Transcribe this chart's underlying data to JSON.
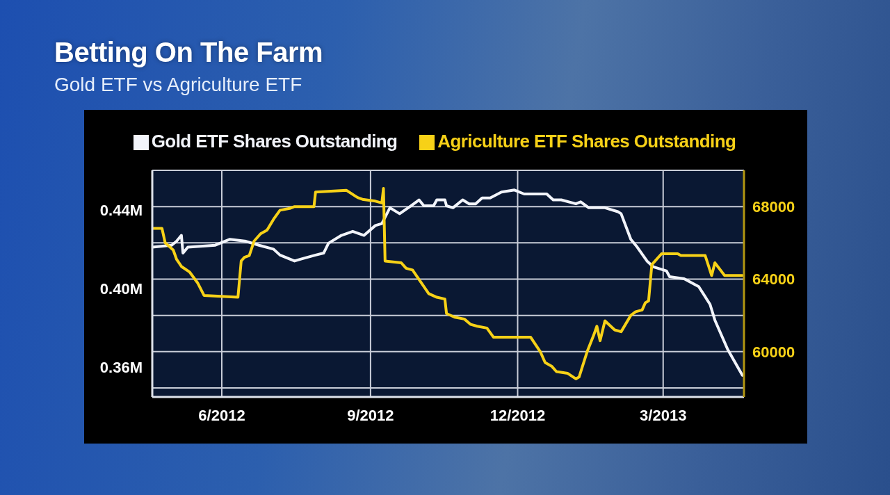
{
  "chart_data": {
    "type": "line",
    "title": "Betting On The Farm",
    "subtitle": "Gold ETF vs Agriculture ETF",
    "xlim": [
      "2012-04-19",
      "2013-04-20"
    ],
    "xticks": [
      {
        "value": "2012-06",
        "label": "6/2012"
      },
      {
        "value": "2012-09",
        "label": "9/2012"
      },
      {
        "value": "2012-12",
        "label": "12/2012"
      },
      {
        "value": "2013-03",
        "label": "3/2013"
      }
    ],
    "ylim": [
      0.345,
      0.46
    ],
    "yticks": [
      {
        "value": 0.36,
        "label": "0.36M"
      },
      {
        "value": 0.4,
        "label": "0.40M"
      },
      {
        "value": 0.44,
        "label": "0.44M"
      }
    ],
    "y2lim": [
      57500,
      70000
    ],
    "y2ticks": [
      {
        "value": 58000,
        "label": null
      },
      60000,
      {
        "value": 62000,
        "label": null
      },
      64000,
      {
        "value": 66000,
        "label": null
      },
      68000
    ],
    "grid": true,
    "legend": "top",
    "series": [
      {
        "name": "Gold ETF Shares Outstanding",
        "color": "#f2f4fa",
        "x": [
          "2012-04-19",
          "2012-05-01",
          "2012-05-04",
          "2012-05-07",
          "2012-05-08",
          "2012-05-11",
          "2012-05-28",
          "2012-06-06",
          "2012-06-16",
          "2012-06-24",
          "2012-07-03",
          "2012-07-07",
          "2012-07-16",
          "2012-07-20",
          "2012-07-29",
          "2012-08-03",
          "2012-08-06",
          "2012-08-14",
          "2012-08-21",
          "2012-08-28",
          "2012-09-04",
          "2012-09-08",
          "2012-09-13",
          "2012-09-19",
          "2012-09-26",
          "2012-10-01",
          "2012-10-04",
          "2012-10-10",
          "2012-10-12",
          "2012-10-17",
          "2012-10-18",
          "2012-10-22",
          "2012-10-28",
          "2012-11-01",
          "2012-11-05",
          "2012-11-09",
          "2012-11-14",
          "2012-11-21",
          "2012-11-29",
          "2012-12-05",
          "2012-12-19",
          "2012-12-23",
          "2012-12-28",
          "2013-01-06",
          "2013-01-09",
          "2013-01-14",
          "2013-01-24",
          "2013-02-01",
          "2013-02-03",
          "2013-02-09",
          "2013-02-13",
          "2013-02-19",
          "2013-02-23",
          "2013-03-03",
          "2013-03-05",
          "2013-03-14",
          "2013-03-23",
          "2013-03-30",
          "2013-04-02",
          "2013-04-10",
          "2013-04-19"
        ],
        "values": [
          0.421,
          0.422,
          0.424,
          0.427,
          0.418,
          0.421,
          0.422,
          0.425,
          0.424,
          0.422,
          0.42,
          0.417,
          0.414,
          0.415,
          0.417,
          0.418,
          0.423,
          0.427,
          0.429,
          0.427,
          0.432,
          0.433,
          0.441,
          0.438,
          0.442,
          0.445,
          0.442,
          0.442,
          0.445,
          0.445,
          0.442,
          0.441,
          0.445,
          0.443,
          0.443,
          0.446,
          0.446,
          0.449,
          0.45,
          0.448,
          0.448,
          0.445,
          0.445,
          0.443,
          0.444,
          0.441,
          0.441,
          0.439,
          0.438,
          0.425,
          0.421,
          0.414,
          0.411,
          0.409,
          0.406,
          0.405,
          0.401,
          0.392,
          0.384,
          0.369,
          0.356
        ]
      },
      {
        "name": "Agriculture ETF Shares Outstanding",
        "color": "#f7d117",
        "axis": "y2",
        "x": [
          "2012-04-19",
          "2012-04-25",
          "2012-04-27",
          "2012-05-02",
          "2012-05-04",
          "2012-05-07",
          "2012-05-12",
          "2012-05-17",
          "2012-05-21",
          "2012-06-11",
          "2012-06-13",
          "2012-06-15",
          "2012-06-18",
          "2012-06-21",
          "2012-06-25",
          "2012-06-29",
          "2012-07-03",
          "2012-07-07",
          "2012-07-13",
          "2012-07-16",
          "2012-07-28",
          "2012-07-29",
          "2012-08-17",
          "2012-08-24",
          "2012-08-27",
          "2012-09-04",
          "2012-09-08",
          "2012-09-09",
          "2012-09-10",
          "2012-09-20",
          "2012-09-23",
          "2012-09-27",
          "2012-10-07",
          "2012-10-12",
          "2012-10-17",
          "2012-10-18",
          "2012-10-23",
          "2012-10-29",
          "2012-11-02",
          "2012-11-06",
          "2012-11-12",
          "2012-11-16",
          "2012-12-09",
          "2012-12-15",
          "2012-12-18",
          "2012-12-22",
          "2012-12-25",
          "2013-01-01",
          "2013-01-06",
          "2013-01-08",
          "2013-01-13",
          "2013-01-17",
          "2013-01-19",
          "2013-01-21",
          "2013-01-24",
          "2013-01-30",
          "2013-02-03",
          "2013-02-09",
          "2013-02-12",
          "2013-02-16",
          "2013-02-18",
          "2013-02-20",
          "2013-02-22",
          "2013-02-28",
          "2013-03-10",
          "2013-03-12",
          "2013-03-27",
          "2013-03-31",
          "2013-04-02",
          "2013-04-08",
          "2013-04-19"
        ],
        "values": [
          66800,
          66800,
          66000,
          65600,
          65100,
          64700,
          64400,
          63800,
          63100,
          63000,
          65000,
          65200,
          65300,
          66100,
          66500,
          66700,
          67300,
          67800,
          67900,
          68000,
          68000,
          68800,
          68900,
          68500,
          68400,
          68300,
          68200,
          69000,
          65000,
          64900,
          64600,
          64500,
          63200,
          63000,
          62900,
          62100,
          61900,
          61800,
          61500,
          61400,
          61300,
          60800,
          60800,
          60000,
          59400,
          59200,
          58900,
          58800,
          58500,
          58600,
          60000,
          60900,
          61400,
          60600,
          61700,
          61200,
          61100,
          62000,
          62200,
          62300,
          62700,
          62800,
          64800,
          65400,
          65400,
          65300,
          65300,
          64200,
          64900,
          64200,
          64200
        ]
      }
    ]
  }
}
